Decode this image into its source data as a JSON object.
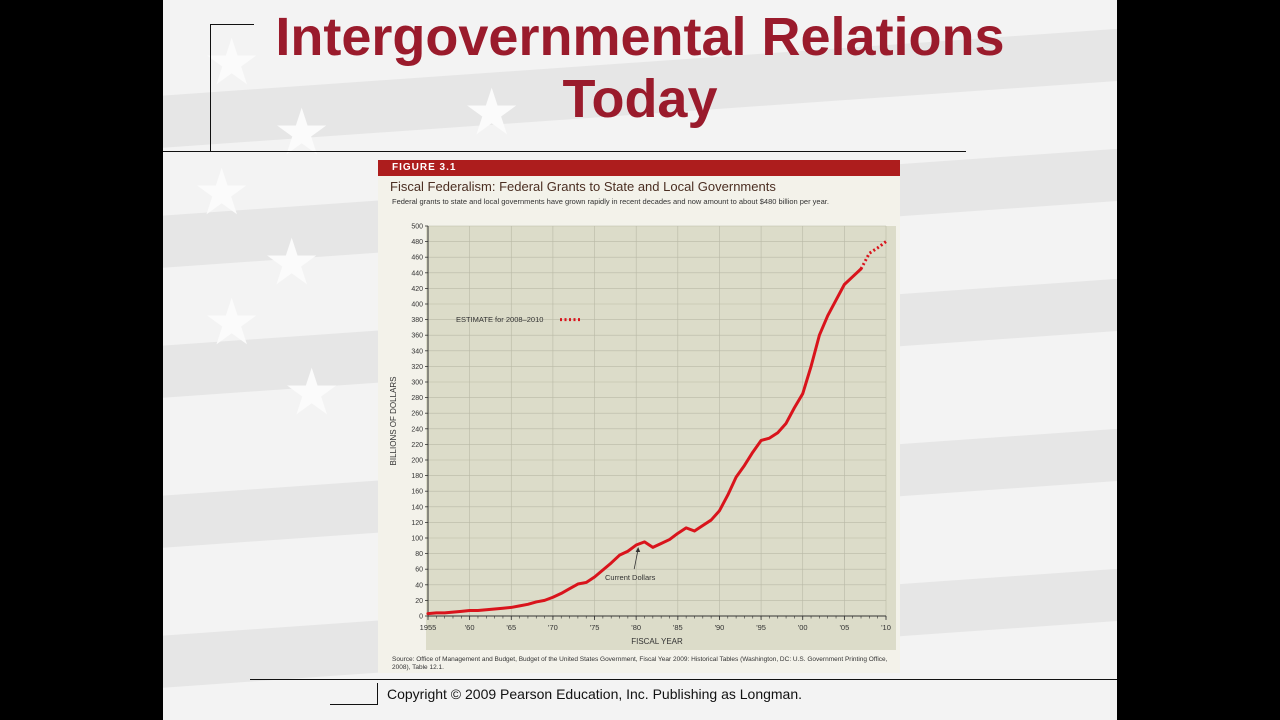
{
  "slide": {
    "title_line1": "Intergovernmental Relations",
    "title_line2": "Today",
    "copyright": "Copyright © 2009 Pearson Education, Inc. Publishing as Longman.",
    "title_color": "#9a1b2c"
  },
  "figure": {
    "label": "FIGURE 3.1",
    "title": "Fiscal Federalism: Federal Grants to State and Local Governments",
    "subtitle": "Federal grants to state and local governments have grown rapidly in recent decades and now amount to about $480 billion per year.",
    "source": "Source: Office of Management and Budget, Budget of the United States Government, Fiscal Year 2009: Historical Tables (Washington, DC: U.S. Government Printing Office, 2008), Table 12.1.",
    "header_color": "#ad1d1d"
  },
  "chart_data": {
    "type": "line",
    "xlabel": "FISCAL YEAR",
    "ylabel": "BILLIONS OF DOLLARS",
    "xlim": [
      1955,
      2010
    ],
    "ylim": [
      0,
      500
    ],
    "x_ticks": [
      1955,
      1960,
      1965,
      1970,
      1975,
      1980,
      1985,
      1990,
      1995,
      2000,
      2005,
      2010
    ],
    "x_tick_labels": [
      "1955",
      "'60",
      "'65",
      "'70",
      "'75",
      "'80",
      "'85",
      "'90",
      "'95",
      "'00",
      "'05",
      "'10"
    ],
    "y_ticks": [
      0,
      20,
      40,
      60,
      80,
      100,
      120,
      140,
      160,
      180,
      200,
      220,
      240,
      260,
      280,
      300,
      320,
      340,
      360,
      380,
      400,
      420,
      440,
      460,
      480,
      500
    ],
    "grid": true,
    "line_color": "#d9141c",
    "legend": {
      "estimate_label": "ESTIMATE for 2008–2010",
      "position": "top-left"
    },
    "annotation": {
      "text": "Current Dollars",
      "x": 1980,
      "y": 91
    },
    "series": [
      {
        "name": "Current Dollars",
        "style": "solid",
        "x": [
          1955,
          1956,
          1957,
          1958,
          1959,
          1960,
          1961,
          1962,
          1963,
          1964,
          1965,
          1966,
          1967,
          1968,
          1969,
          1970,
          1971,
          1972,
          1973,
          1974,
          1975,
          1976,
          1977,
          1978,
          1979,
          1980,
          1981,
          1982,
          1983,
          1984,
          1985,
          1986,
          1987,
          1988,
          1989,
          1990,
          1991,
          1992,
          1993,
          1994,
          1995,
          1996,
          1997,
          1998,
          1999,
          2000,
          2001,
          2002,
          2003,
          2004,
          2005,
          2006,
          2007
        ],
        "y": [
          3,
          4,
          4,
          5,
          6,
          7,
          7,
          8,
          9,
          10,
          11,
          13,
          15,
          18,
          20,
          24,
          29,
          35,
          41,
          43,
          50,
          59,
          68,
          78,
          83,
          91,
          95,
          88,
          93,
          98,
          106,
          113,
          109,
          116,
          123,
          135,
          155,
          178,
          193,
          210,
          225,
          228,
          235,
          247,
          267,
          285,
          320,
          360,
          385,
          405,
          425,
          435,
          445
        ]
      },
      {
        "name": "ESTIMATE for 2008–2010",
        "style": "dotted",
        "x": [
          2007,
          2008,
          2009,
          2010
        ],
        "y": [
          445,
          465,
          472,
          480
        ]
      }
    ]
  }
}
